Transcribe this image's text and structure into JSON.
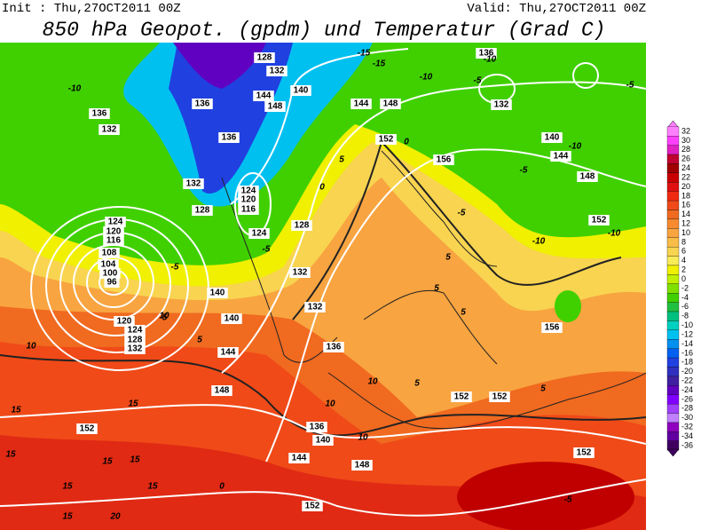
{
  "header": {
    "init": "Init : Thu,27OCT2011 00Z",
    "valid": "Valid: Thu,27OCT2011 00Z",
    "title": "850 hPa Geopot. (gpdm) und Temperatur (Grad C)"
  },
  "colorbar": {
    "levels": [
      32,
      30,
      28,
      26,
      24,
      22,
      20,
      18,
      16,
      14,
      12,
      10,
      8,
      6,
      4,
      2,
      0,
      -2,
      -4,
      -6,
      -8,
      -10,
      -12,
      -14,
      -16,
      -18,
      -20,
      -22,
      -24,
      -26,
      -28,
      -30,
      -32,
      -34,
      -36
    ],
    "colors": [
      "#ff80ff",
      "#ff40ff",
      "#e020c0",
      "#c00030",
      "#a00000",
      "#c80000",
      "#e01010",
      "#f02a10",
      "#f04a18",
      "#f06a20",
      "#f88a30",
      "#f8a440",
      "#f8bc48",
      "#f8d450",
      "#f8ec58",
      "#f0f000",
      "#c0f000",
      "#80e000",
      "#40d000",
      "#20c040",
      "#00c080",
      "#00d0c0",
      "#00c0f0",
      "#0090f0",
      "#0060f0",
      "#2040e0",
      "#3030c0",
      "#4020a0",
      "#6000c0",
      "#8000ff",
      "#a040ff",
      "#c080ff",
      "#9000c0",
      "#6000a0",
      "#400060"
    ]
  },
  "map": {
    "geopotential_labels": [
      "128",
      "132",
      "144",
      "148",
      "140",
      "136",
      "136",
      "132",
      "128",
      "124",
      "120",
      "116",
      "108",
      "104",
      "100",
      "96",
      "120",
      "124",
      "128",
      "132",
      "140",
      "144",
      "148",
      "152",
      "152",
      "136",
      "140",
      "144",
      "148",
      "152",
      "152",
      "152",
      "152",
      "128",
      "132",
      "132",
      "136",
      "140",
      "144",
      "148",
      "152",
      "156",
      "156",
      "140",
      "144",
      "148",
      "152",
      "136",
      "132",
      "124",
      "120",
      "116",
      "124",
      "136",
      "132"
    ],
    "temperature_labels": [
      "-10",
      "-15",
      "-15",
      "-10",
      "-10",
      "-5",
      "-5",
      "-10",
      "-5",
      "-5",
      "-10",
      "-10",
      "-5",
      "-5",
      "-5",
      "0",
      "0",
      "5",
      "5",
      "5",
      "5",
      "5",
      "10",
      "10",
      "10",
      "10",
      "10",
      "15",
      "15",
      "15",
      "15",
      "15",
      "15",
      "15",
      "15",
      "20",
      "0",
      "-5",
      "5",
      "5"
    ]
  }
}
